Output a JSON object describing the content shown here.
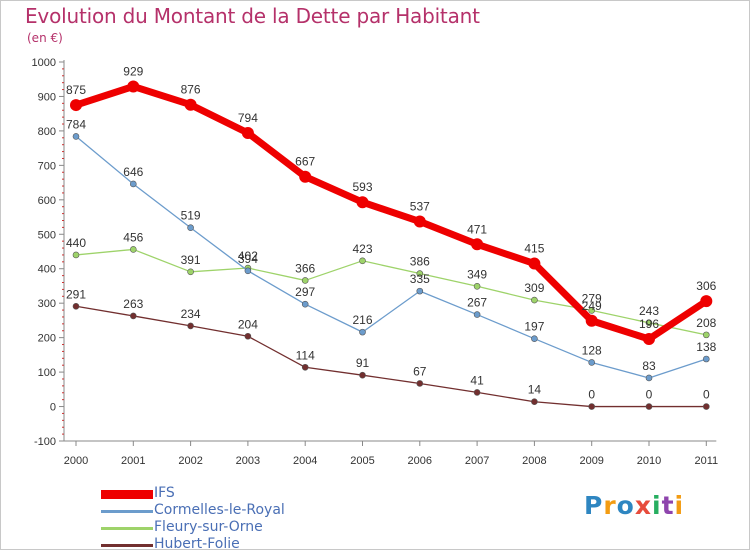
{
  "title": "Evolution du Montant de la Dette par Habitant",
  "subtitle": "(en €)",
  "logo": {
    "text": "Proxiti",
    "colors": [
      "#2e86c1",
      "#f39c12",
      "#2e86c1",
      "#e74c3c",
      "#27ae60",
      "#8e44ad",
      "#f39c12"
    ]
  },
  "chart_data": {
    "type": "line",
    "title": "Evolution du Montant de la Dette par Habitant",
    "subtitle": "(en €)",
    "xlabel": "",
    "ylabel": "",
    "x": [
      "2000",
      "2001",
      "2002",
      "2003",
      "2004",
      "2005",
      "2006",
      "2007",
      "2008",
      "2009",
      "2010",
      "2011"
    ],
    "ylim": [
      -100,
      1000
    ],
    "yticks": [
      -100,
      0,
      100,
      200,
      300,
      400,
      500,
      600,
      700,
      800,
      900,
      1000
    ],
    "grid": false,
    "legend_position": "bottom-left",
    "series": [
      {
        "name": "Hubert-Folie",
        "color": "#722f2f",
        "width": 1.3,
        "values": [
          291,
          263,
          234,
          204,
          114,
          91,
          67,
          41,
          14,
          0,
          0,
          0
        ]
      },
      {
        "name": "Fleury-sur-Orne",
        "color": "#9ed36a",
        "width": 1.3,
        "values": [
          440,
          456,
          391,
          402,
          366,
          423,
          386,
          349,
          309,
          279,
          243,
          208
        ]
      },
      {
        "name": "Cormelles-le-Royal",
        "color": "#6c9ccc",
        "width": 1.3,
        "values": [
          784,
          646,
          519,
          394,
          297,
          216,
          335,
          267,
          197,
          128,
          83,
          138
        ]
      },
      {
        "name": "IFS",
        "color": "#ee0000",
        "width": 7,
        "values": [
          875,
          929,
          876,
          794,
          667,
          593,
          537,
          471,
          415,
          249,
          196,
          306
        ]
      }
    ]
  }
}
